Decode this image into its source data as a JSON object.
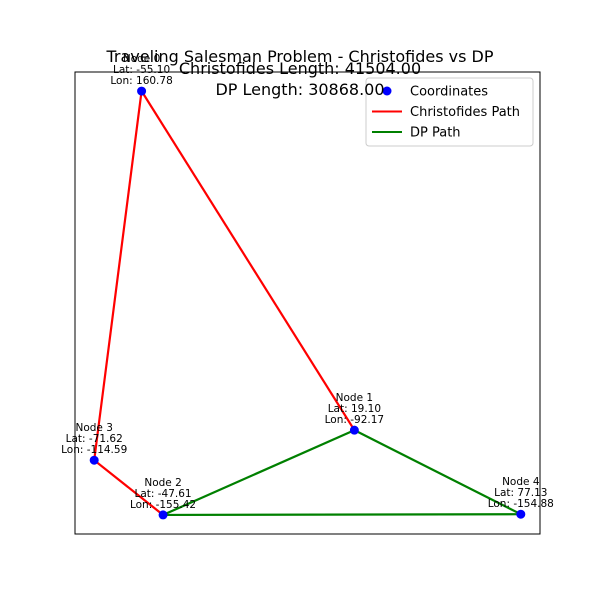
{
  "chart_data": {
    "type": "line",
    "title": "Traveling Salesman Problem - Christofides vs DP",
    "subtitle_lines": [
      "Christofides Length: 41504.00",
      "DP Length: 30868.00"
    ],
    "xlabel": "",
    "ylabel": "",
    "axes_visible": false,
    "grid": false,
    "legend_position": "top-right",
    "nodes": [
      {
        "id": 0,
        "label": "Node 0",
        "lat": -55.1,
        "lon": 160.78,
        "lat_text": "Lat: -55.10",
        "lon_text": "Lon: 160.78"
      },
      {
        "id": 1,
        "label": "Node 1",
        "lat": 19.1,
        "lon": -92.17,
        "lat_text": "Lat: 19.10",
        "lon_text": "Lon: -92.17"
      },
      {
        "id": 2,
        "label": "Node 2",
        "lat": -47.61,
        "lon": -155.42,
        "lat_text": "Lat: -47.61",
        "lon_text": "Lon: -155.42"
      },
      {
        "id": 3,
        "label": "Node 3",
        "lat": -71.62,
        "lon": -114.59,
        "lat_text": "Lat: -71.62",
        "lon_text": "Lon: -114.59"
      },
      {
        "id": 4,
        "label": "Node 4",
        "lat": 77.13,
        "lon": -154.88,
        "lat_text": "Lat: 77.13",
        "lon_text": "Lon: -154.88"
      }
    ],
    "series": [
      {
        "name": "Coordinates",
        "kind": "scatter",
        "color": "#0000ff"
      },
      {
        "name": "Christofides Path",
        "kind": "line",
        "color": "#ff0000",
        "path": [
          1,
          0,
          3,
          2
        ]
      },
      {
        "name": "DP Path",
        "kind": "line",
        "color": "#008000",
        "path": [
          2,
          1,
          4,
          2
        ]
      }
    ]
  }
}
